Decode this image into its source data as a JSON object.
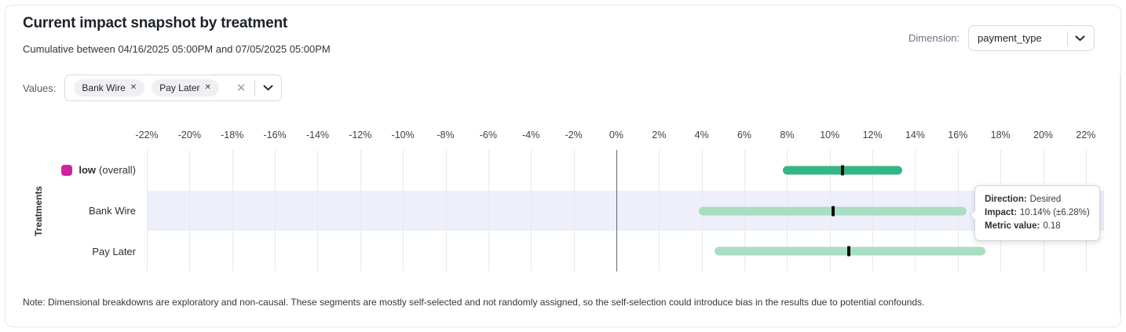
{
  "header": {
    "title": "Current impact snapshot by treatment",
    "subtitle": "Cumulative between 04/16/2025 05:00PM and 07/05/2025 05:00PM",
    "dimension_label": "Dimension:",
    "dimension_value": "payment_type"
  },
  "filters": {
    "values_label": "Values:",
    "chips": [
      {
        "label": "Bank Wire"
      },
      {
        "label": "Pay Later"
      }
    ],
    "chip_remove_glyph": "✕",
    "clear_glyph": "✕"
  },
  "chart_data": {
    "type": "interval",
    "ylabel": "Treatments",
    "x_tick_suffix": "%",
    "x_domain": [
      -22,
      22.85
    ],
    "x_ticks": [
      -22,
      -20,
      -18,
      -16,
      -14,
      -12,
      -10,
      -8,
      -6,
      -4,
      -2,
      0,
      2,
      4,
      6,
      8,
      10,
      12,
      14,
      16,
      18,
      20,
      22
    ],
    "grid": true,
    "zero_line": true,
    "rows": [
      {
        "label": "low",
        "label_suffix": " (overall)",
        "swatch_color": "#d2239e",
        "color": "#35b585",
        "low": 7.8,
        "high": 13.4,
        "center": 10.6,
        "highlighted": false
      },
      {
        "label": "Bank Wire",
        "color": "#a9dec2",
        "low": 3.86,
        "high": 16.42,
        "center": 10.14,
        "highlighted": true
      },
      {
        "label": "Pay Later",
        "color": "#a9dec2",
        "low": 4.6,
        "high": 17.3,
        "center": 10.9,
        "highlighted": false
      }
    ]
  },
  "tooltip": {
    "direction_label": "Direction:",
    "direction_value": "Desired",
    "impact_label": "Impact:",
    "impact_value": "10.14% (±6.28%)",
    "metric_label": "Metric value:",
    "metric_value": "0.18"
  },
  "note": "Note: Dimensional breakdowns are exploratory and non-causal. These segments are mostly self-selected and not randomly assigned, so the self-selection could introduce bias in the results due to potential confounds."
}
